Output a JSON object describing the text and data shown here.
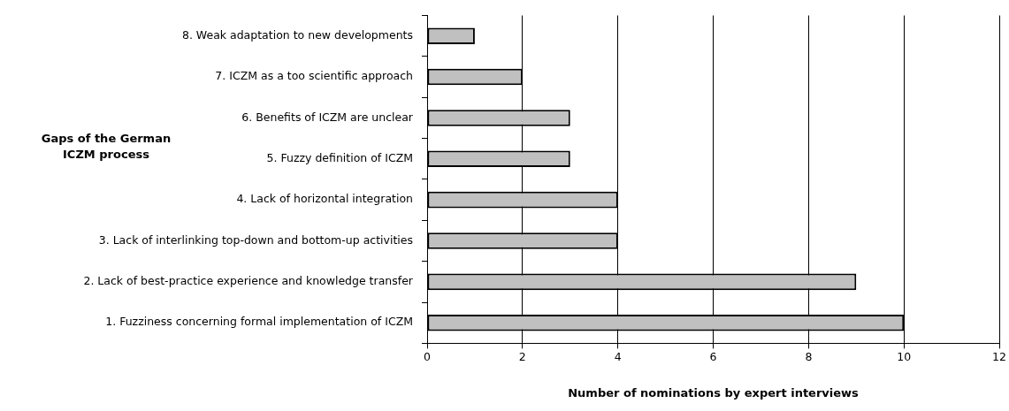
{
  "chart_data": {
    "type": "bar",
    "orientation": "horizontal",
    "categories": [
      "8. Weak adaptation to new developments",
      "7. ICZM as a too scientific approach",
      "6. Benefits of ICZM are unclear",
      "5. Fuzzy definition of ICZM",
      "4. Lack of horizontal integration",
      "3. Lack of interlinking top-down and bottom-up activities",
      "2. Lack of best-practice experience and knowledge transfer",
      "1. Fuzziness concerning formal implementation of ICZM"
    ],
    "values": [
      1,
      2,
      3,
      3,
      4,
      4,
      9,
      10
    ],
    "color": "#c0c0c0",
    "xlim": [
      0,
      12
    ],
    "xticks": [
      0,
      2,
      4,
      6,
      8,
      10,
      12
    ],
    "xlabel": "Number of nominations by expert interviews",
    "ylabel": "Gaps of the German ICZM process",
    "grid": "x",
    "legend": false
  }
}
